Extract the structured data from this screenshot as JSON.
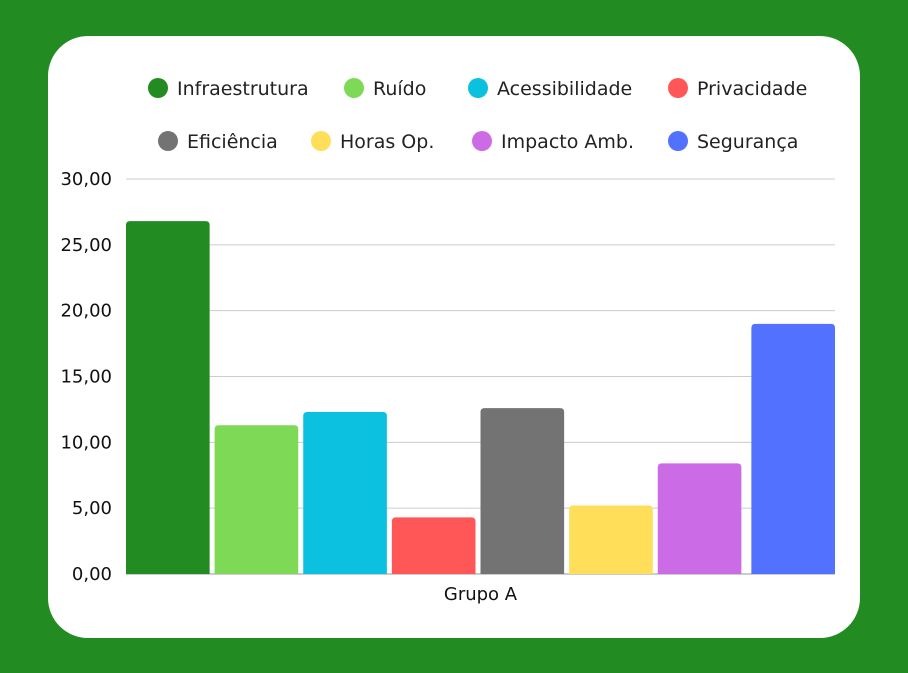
{
  "chart_data": {
    "type": "bar",
    "title": "",
    "xlabel": "",
    "ylabel": "",
    "categories": [
      "Grupo A"
    ],
    "series": [
      {
        "name": "Infraestrutura",
        "values": [
          26.8
        ],
        "color": "#228b22"
      },
      {
        "name": "Ruído",
        "values": [
          11.3
        ],
        "color": "#7ed957"
      },
      {
        "name": "Acessibilidade",
        "values": [
          12.3
        ],
        "color": "#0cc0df"
      },
      {
        "name": "Privacidade",
        "values": [
          4.3
        ],
        "color": "#ff5757"
      },
      {
        "name": "Eficiência",
        "values": [
          12.6
        ],
        "color": "#737373"
      },
      {
        "name": "Horas Op.",
        "values": [
          5.2
        ],
        "color": "#ffde59"
      },
      {
        "name": "Impacto Amb.",
        "values": [
          8.4
        ],
        "color": "#cb6ce6"
      },
      {
        "name": "Segurança",
        "values": [
          19.0
        ],
        "color": "#5271ff"
      }
    ],
    "ylim": [
      0,
      30
    ],
    "yticks": [
      "0,00",
      "5,00",
      "10,00",
      "15,00",
      "20,00",
      "25,00",
      "30,00"
    ],
    "grid": true,
    "legend_position": "top"
  },
  "colors": {
    "background": "#228b22",
    "card": "#ffffff",
    "gridline": "#cccccc"
  }
}
